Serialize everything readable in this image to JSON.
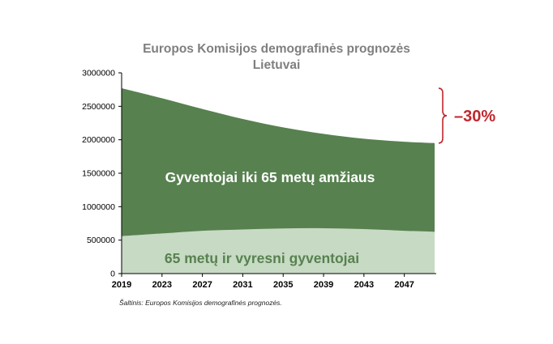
{
  "chart_data": {
    "type": "area",
    "title": "Europos Komisijos demografinės prognozės",
    "subtitle": "Lietuvai",
    "xlabel": "",
    "ylabel": "",
    "x": [
      2019,
      2023,
      2027,
      2031,
      2035,
      2039,
      2043,
      2047,
      2050
    ],
    "x_ticks": [
      "2019",
      "2023",
      "2027",
      "2031",
      "2035",
      "2039",
      "2043",
      "2047"
    ],
    "y_ticks": [
      "0",
      "500000",
      "1000000",
      "1500000",
      "2000000",
      "2500000",
      "3000000"
    ],
    "ylim": [
      0,
      3000000
    ],
    "stacked": true,
    "grid": false,
    "series": [
      {
        "name": "65 metų ir vyresni gyventojai",
        "values": [
          560000,
          600000,
          640000,
          660000,
          675000,
          678000,
          665000,
          640000,
          625000
        ]
      },
      {
        "name": "Gyventojai iki 65 metų amžiaus",
        "values": [
          2210000,
          2020000,
          1820000,
          1650000,
          1510000,
          1410000,
          1350000,
          1330000,
          1325000
        ]
      }
    ],
    "annotation": "–30%",
    "colors": {
      "older": "#c7dac4",
      "younger": "#57814f",
      "annotation": "#c0272d",
      "title": "#7f7f7f"
    }
  },
  "source_note": "Šaltinis: Europos Komisijos demografinės prognozės."
}
